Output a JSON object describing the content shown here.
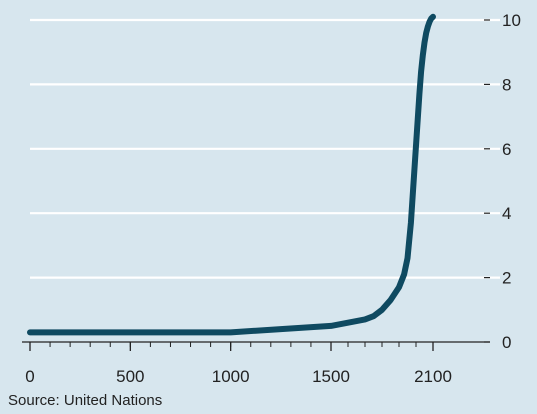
{
  "chart_data": {
    "type": "line",
    "title": "",
    "xlabel": "",
    "ylabel": "",
    "x_ticks": [
      0,
      500,
      1000,
      1500,
      2100
    ],
    "y_ticks": [
      0,
      2,
      4,
      6,
      8,
      10
    ],
    "xlim": [
      0,
      2150
    ],
    "ylim": [
      0,
      10
    ],
    "y_axis_side": "right",
    "grid": true,
    "series": [
      {
        "color": "#0f4a61",
        "x": [
          0,
          250,
          500,
          750,
          1000,
          1250,
          1500,
          1600,
          1700,
          1750,
          1800,
          1850,
          1900,
          1930,
          1950,
          1970,
          1980,
          1990,
          2000,
          2005,
          2010,
          2020,
          2030,
          2040,
          2050,
          2060,
          2070,
          2080,
          2090,
          2100
        ],
        "y": [
          0.3,
          0.3,
          0.3,
          0.3,
          0.3,
          0.4,
          0.5,
          0.6,
          0.7,
          0.8,
          1.0,
          1.3,
          1.7,
          2.1,
          2.6,
          3.7,
          4.5,
          5.3,
          6.1,
          6.5,
          6.9,
          7.7,
          8.4,
          8.9,
          9.3,
          9.6,
          9.8,
          9.95,
          10.05,
          10.1
        ]
      }
    ],
    "source": "Source: United Nations"
  }
}
